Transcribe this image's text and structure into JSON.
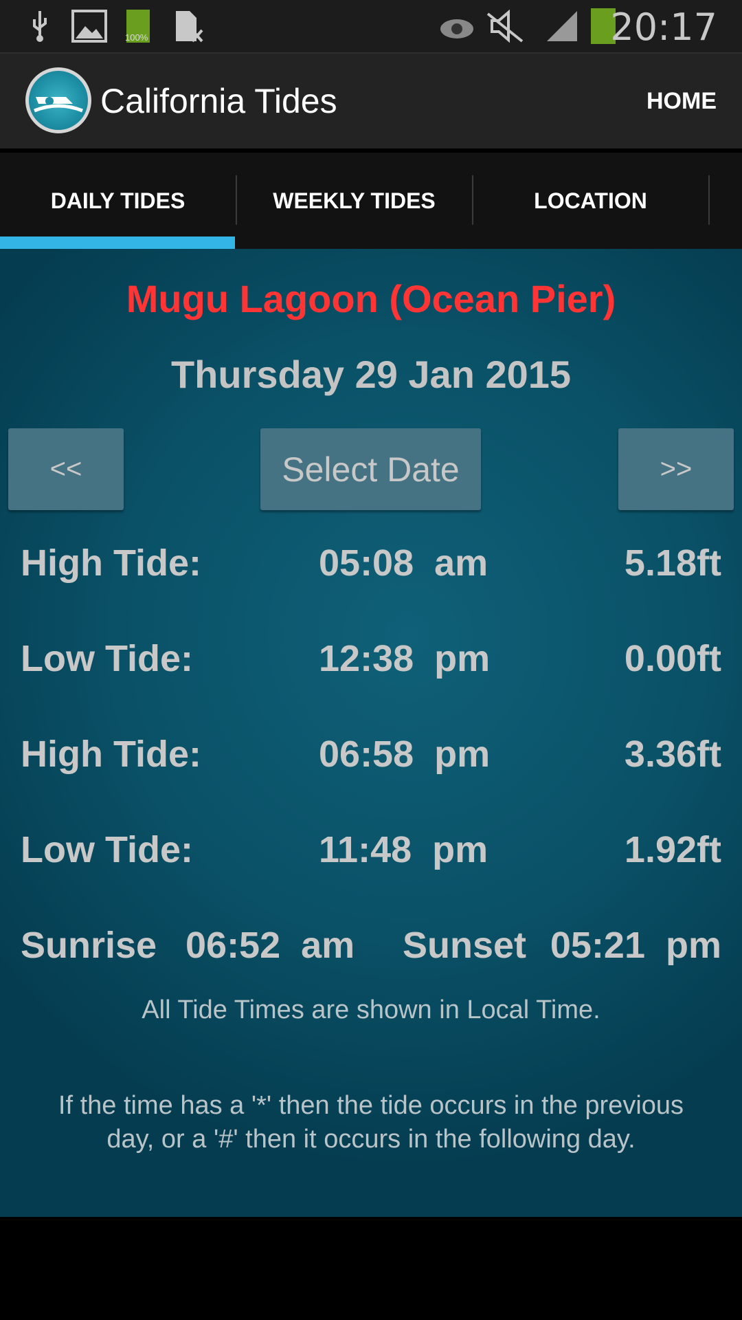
{
  "status_bar": {
    "time": "20:17",
    "battery_small_label": "100%",
    "icons": [
      "usb-icon",
      "image-icon",
      "battery-icon",
      "sim-icon",
      "eye-icon",
      "mute-icon",
      "signal-icon",
      "battery-icon"
    ]
  },
  "action_bar": {
    "title": "California Tides",
    "home_label": "HOME"
  },
  "tabs": [
    {
      "label": "DAILY TIDES",
      "selected": true
    },
    {
      "label": "WEEKLY TIDES"
    },
    {
      "label": "LOCATION"
    }
  ],
  "accent_color": "#33b5e5",
  "location": "Mugu Lagoon (Ocean Pier)",
  "date": "Thursday 29 Jan 2015",
  "buttons": {
    "prev": "<<",
    "select": "Select Date",
    "next": ">>"
  },
  "tides": [
    {
      "label": "High Tide:",
      "time": "05:08  am",
      "height": "5.18ft"
    },
    {
      "label": "Low Tide:",
      "time": "12:38  pm",
      "height": "0.00ft"
    },
    {
      "label": "High Tide:",
      "time": "06:58  pm",
      "height": "3.36ft"
    },
    {
      "label": "Low Tide:",
      "time": "11:48  pm",
      "height": "1.92ft"
    }
  ],
  "sun": {
    "sunrise_label": "Sunrise",
    "sunrise": "06:52  am",
    "sunset_label": "Sunset",
    "sunset": "05:21  pm"
  },
  "notes": {
    "local_time": "All Tide Times are shown in Local Time.",
    "line1": "If the time has a '*' then the tide occurs in the previous",
    "line2": "day, or a '#' then it occurs in the following day."
  }
}
